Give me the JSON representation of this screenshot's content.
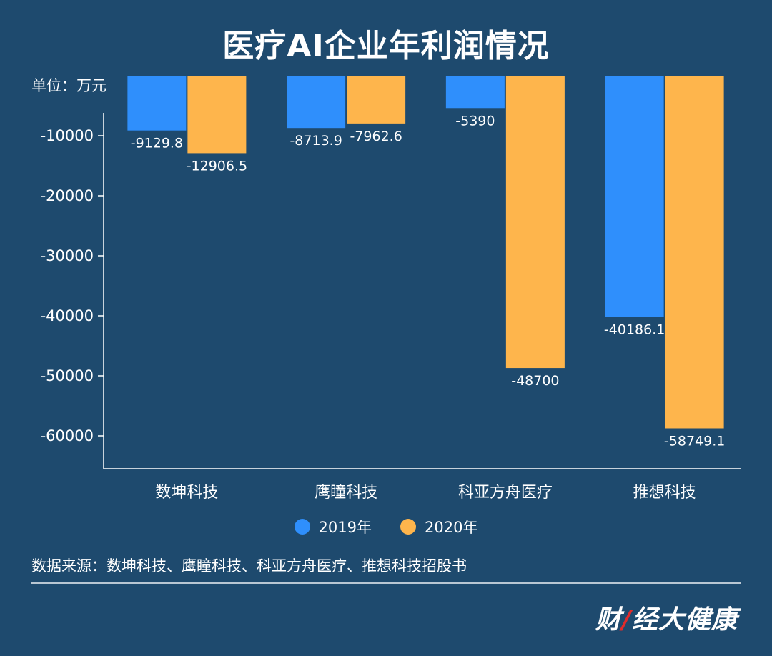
{
  "title": "医疗AI企业年利润情况",
  "unit_label": "单位：万元",
  "source_text": "数据来源：数坤科技、鹰瞳科技、科亚方舟医疗、推想科技招股书",
  "logo": {
    "text_prefix": "财",
    "text_mark": "/",
    "text_suffix": "经大健康"
  },
  "colors": {
    "background": "#1e4a6e",
    "series_2019": "#2f8ffc",
    "series_2020": "#feb54c",
    "axis": "#ffffff"
  },
  "chart_data": {
    "type": "bar",
    "title": "医疗AI企业年利润情况",
    "xlabel": "",
    "ylabel": "单位：万元",
    "categories": [
      "数坤科技",
      "鹰瞳科技",
      "科亚方舟医疗",
      "推想科技"
    ],
    "series": [
      {
        "name": "2019年",
        "values": [
          -9129.8,
          -8713.9,
          -5390,
          -40186.1
        ],
        "labels": [
          "-9129.8",
          "-8713.9",
          "-5390",
          "-40186.1"
        ]
      },
      {
        "name": "2020年",
        "values": [
          -12906.5,
          -7962.6,
          -48700,
          -58749.1
        ],
        "labels": [
          "-12906.5",
          "-7962.6",
          "-48700",
          "-58749.1"
        ]
      }
    ],
    "yticks": [
      -10000,
      -20000,
      -30000,
      -40000,
      -50000,
      -60000
    ],
    "ylim": [
      -64000,
      0
    ],
    "grid": false,
    "legend": "bottom-center"
  }
}
